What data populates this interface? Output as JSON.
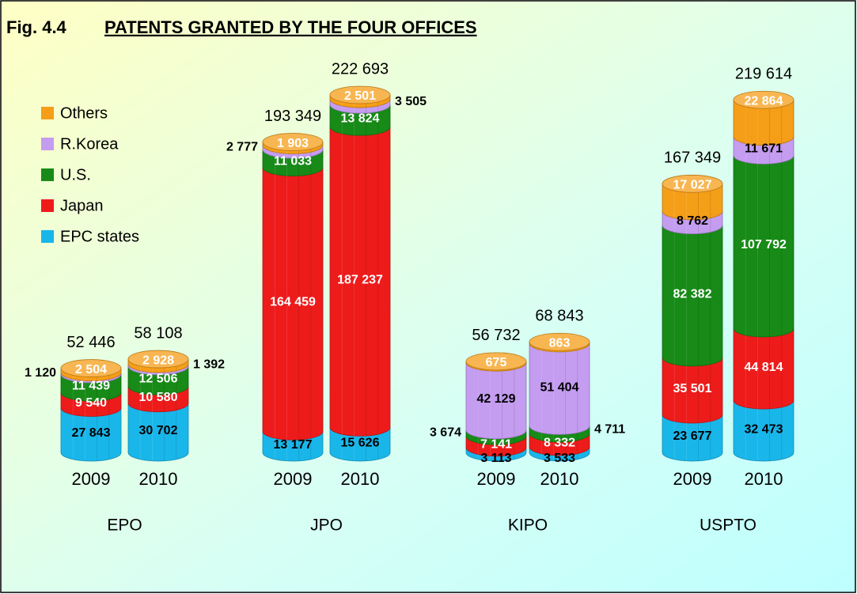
{
  "chart_data": {
    "type": "stacked_cylinder",
    "figure_label": "Fig. 4.4",
    "title": "PATENTS GRANTED BY THE FOUR OFFICES",
    "groups": [
      "EPO",
      "JPO",
      "KIPO",
      "USPTO"
    ],
    "categories": [
      "2009",
      "2010",
      "2009",
      "2010",
      "2009",
      "2010",
      "2009",
      "2010"
    ],
    "legend": "upper left",
    "series": [
      {
        "name": "EPC states",
        "color": "#19b6ea",
        "values": [
          27843,
          30702,
          13177,
          15626,
          3113,
          3533,
          23677,
          32473
        ],
        "value_labels": [
          "27 843",
          "30 702",
          "13 177",
          "15 626",
          "3 113",
          "3 533",
          "23 677",
          "32 473"
        ]
      },
      {
        "name": "Japan",
        "color": "#ee1b1b",
        "values": [
          9540,
          10580,
          164459,
          187237,
          7141,
          8332,
          35501,
          44814
        ],
        "value_labels": [
          "9 540",
          "10 580",
          "164 459",
          "187 237",
          "7 141",
          "8 332",
          "35 501",
          "44 814"
        ]
      },
      {
        "name": "U.S.",
        "color": "#178a17",
        "values": [
          11439,
          12506,
          11033,
          13824,
          3674,
          4711,
          82382,
          107792
        ],
        "value_labels": [
          "11 439",
          "12 506",
          "11 033",
          "13 824",
          "3 674",
          "4 711",
          "82 382",
          "107 792"
        ]
      },
      {
        "name": "R.Korea",
        "color": "#c49cf0",
        "values": [
          1120,
          1392,
          2777,
          3505,
          42129,
          51404,
          8762,
          11671
        ],
        "value_labels": [
          "1 120",
          "1 392",
          "2 777",
          "3 505",
          "42 129",
          "51 404",
          "8 762",
          "11 671"
        ]
      },
      {
        "name": "Others",
        "color": "#f59e18",
        "values": [
          2504,
          2928,
          1903,
          2501,
          675,
          863,
          17027,
          22864
        ],
        "value_labels": [
          "2 504",
          "2 928",
          "1 903",
          "2 501",
          "675",
          "863",
          "17 027",
          "22 864"
        ]
      }
    ],
    "totals": [
      52446,
      58108,
      193349,
      222693,
      56732,
      68843,
      167349,
      219614
    ],
    "total_labels": [
      "52 446",
      "58 108",
      "193 349",
      "222 693",
      "56 732",
      "68 843",
      "167 349",
      "219 614"
    ]
  }
}
